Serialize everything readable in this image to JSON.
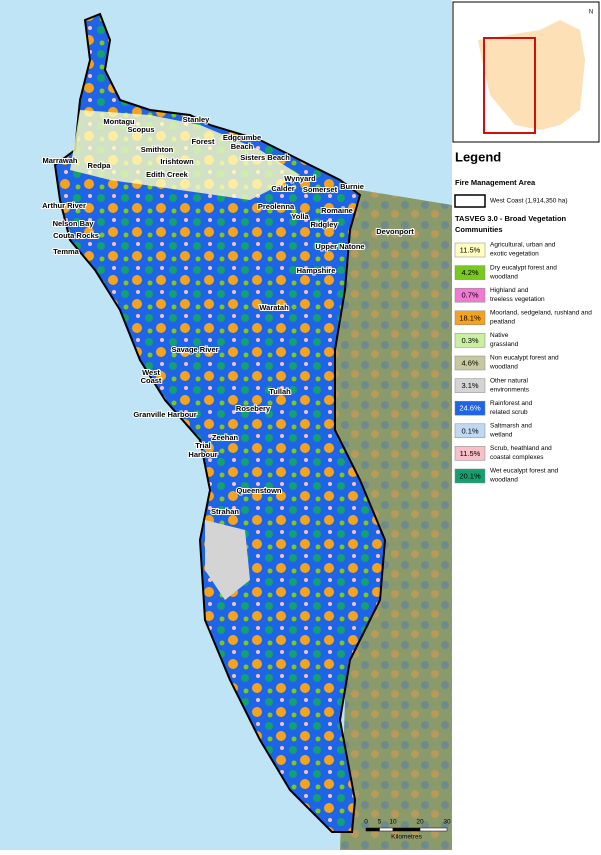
{
  "places": [
    "Stanley",
    "Montagu",
    "Scopus",
    "Edgcumbe",
    "Beach",
    "Forest",
    "Smithton",
    "Irishtown",
    "Sisters Beach",
    "Marrawah",
    "Redpa",
    "Edith Creek",
    "Wynyard",
    "Calder",
    "Somerset",
    "Burnie",
    "Arthur River",
    "Preolenna",
    "Romaine",
    "Yolla",
    "Nelson Bay",
    "Couta Rocks",
    "Ridgley",
    "Temma",
    "Upper Natone",
    "Devonport",
    "Hampshire",
    "Waratah",
    "Savage River",
    "West",
    "Coast",
    "Tullah",
    "Rosebery",
    "Granville Harbour",
    "Zeehan",
    "Trial",
    "Harbour",
    "Queenstown",
    "Strahan"
  ],
  "inset": {
    "north": "N"
  },
  "legend": {
    "title": "Legend",
    "area_heading": "Fire Management Area",
    "area_item": "West Coast (1,914,350 ha)",
    "veg_heading": [
      "TASVEG 3.0 - Broad Vegetation",
      "Communities"
    ],
    "items": [
      {
        "percent": "11.5%",
        "label": [
          "Agricultural, urban and",
          "exotic vegetation"
        ],
        "color": "#ffffc0"
      },
      {
        "percent": "4.2%",
        "label": [
          "Dry eucalypt forest and",
          "woodland"
        ],
        "color": "#78c81e"
      },
      {
        "percent": "0.7%",
        "label": [
          "Highland and",
          "treeless vegetation"
        ],
        "color": "#f07ad2"
      },
      {
        "percent": "18.1%",
        "label": [
          "Moorland, sedgeland, rushland and",
          "peatland"
        ],
        "color": "#f5a31e"
      },
      {
        "percent": "0.3%",
        "label": [
          "Native",
          "grassland"
        ],
        "color": "#c8f0a0"
      },
      {
        "percent": "4.6%",
        "label": [
          "Non eucalypt forest and",
          "woodland"
        ],
        "color": "#c8c8a0"
      },
      {
        "percent": "3.1%",
        "label": [
          "Other natural",
          "environments"
        ],
        "color": "#d4d4d4"
      },
      {
        "percent": "24.6%",
        "label": [
          "Rainforest and",
          "related scrub"
        ],
        "color": "#1e64e6"
      },
      {
        "percent": "0.1%",
        "label": [
          "Saltmarsh and",
          "wetland"
        ],
        "color": "#c0d8f2"
      },
      {
        "percent": "11.5%",
        "label": [
          "Scrub, heathland and",
          "coastal complexes"
        ],
        "color": "#f8c0c8"
      },
      {
        "percent": "20.1%",
        "label": [
          "Wet eucalypt forest and",
          "woodland"
        ],
        "color": "#14a070"
      }
    ]
  },
  "scale_bar": {
    "ticks": [
      0,
      5,
      10,
      20,
      30
    ],
    "unit": "Kilometres"
  }
}
